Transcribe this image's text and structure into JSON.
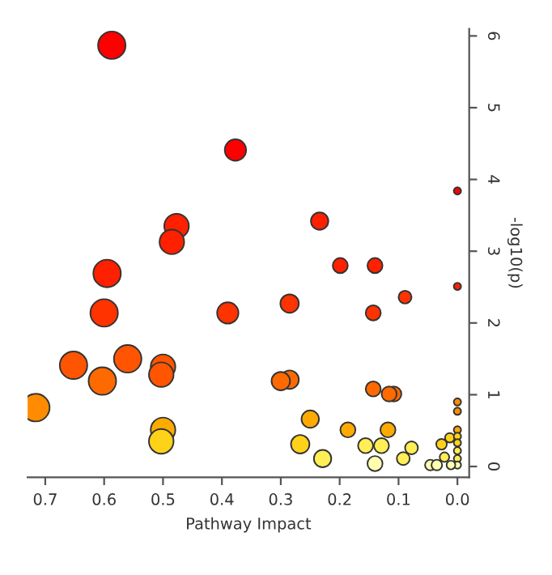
{
  "chart_data": {
    "type": "bubble",
    "xlabel": "Pathway Impact",
    "ylabel": "-log10(p)",
    "xlim": [
      0.73,
      -0.02
    ],
    "ylim": [
      -0.15,
      6.1
    ],
    "xticks": [
      {
        "value": 0.7,
        "label": "0.7"
      },
      {
        "value": 0.6,
        "label": "0.6"
      },
      {
        "value": 0.5,
        "label": "0.5"
      },
      {
        "value": 0.4,
        "label": "0.4"
      },
      {
        "value": 0.3,
        "label": "0.3"
      },
      {
        "value": 0.2,
        "label": "0.2"
      },
      {
        "value": 0.1,
        "label": "0.1"
      },
      {
        "value": 0,
        "label": "0.0"
      }
    ],
    "yticks": [
      0,
      1,
      2,
      3,
      4,
      5,
      6
    ],
    "grid": false,
    "legend": false,
    "x": [
      0.587,
      0.377,
      0.0,
      0.477,
      0.485,
      0.234,
      0.199,
      0.14,
      0.595,
      0.0,
      0.089,
      0.285,
      0.143,
      0.39,
      0.6,
      0.56,
      0.652,
      0.5,
      0.503,
      0.603,
      0.285,
      0.3,
      0.143,
      0.108,
      0.116,
      0.0,
      0.0,
      0.716,
      0.25,
      0.5,
      0.503,
      0.186,
      0.118,
      0.267,
      0.156,
      0.129,
      0.229,
      0.14,
      0.092,
      0.078,
      0.027,
      0.013,
      0.0,
      0.0,
      0.0,
      0.0,
      0.0,
      0.0,
      0.046,
      0.035,
      0.022,
      0.011
    ],
    "values": [
      5.87,
      4.41,
      3.84,
      3.35,
      3.13,
      3.42,
      2.8,
      2.8,
      2.69,
      2.51,
      2.36,
      2.27,
      2.14,
      2.14,
      2.14,
      1.5,
      1.41,
      1.39,
      1.28,
      1.19,
      1.21,
      1.19,
      1.08,
      1.01,
      1.01,
      0.9,
      0.77,
      0.82,
      0.66,
      0.51,
      0.35,
      0.51,
      0.51,
      0.31,
      0.29,
      0.29,
      0.11,
      0.04,
      0.11,
      0.26,
      0.31,
      0.4,
      0.51,
      0.42,
      0.33,
      0.22,
      0.11,
      0.02,
      0.02,
      0.02,
      0.13,
      0.02
    ],
    "sizes": [
      1,
      0.6,
      0.07,
      0.8,
      0.8,
      0.4,
      0.3,
      0.3,
      1,
      0.07,
      0.22,
      0.45,
      0.3,
      0.6,
      1,
      1,
      1,
      0.8,
      0.8,
      1,
      0.45,
      0.45,
      0.3,
      0.3,
      0.3,
      0.07,
      0.07,
      1,
      0.4,
      0.8,
      0.8,
      0.3,
      0.3,
      0.45,
      0.3,
      0.3,
      0.4,
      0.3,
      0.22,
      0.22,
      0.15,
      0.12,
      0.07,
      0.07,
      0.07,
      0.07,
      0.07,
      0.07,
      0.15,
      0.15,
      0.12,
      0.1
    ],
    "colors": [
      "#ff0000",
      "#ff0000",
      "#ff0000",
      "#ff2000",
      "#ff2000",
      "#ff2000",
      "#ff2000",
      "#ff2000",
      "#ff2000",
      "#ff2000",
      "#ff3300",
      "#ff3300",
      "#ff3300",
      "#ff3300",
      "#ff3300",
      "#ff5500",
      "#ff5500",
      "#ff5500",
      "#ff5500",
      "#ff6a00",
      "#ff6a00",
      "#ff6a00",
      "#ff6a00",
      "#ff6a00",
      "#ff6a00",
      "#ff8c00",
      "#ff8c00",
      "#ff8c00",
      "#ffaa00",
      "#ffaa00",
      "#ffd21a",
      "#ffaa00",
      "#ffaa00",
      "#ffd21a",
      "#ffee55",
      "#ffee55",
      "#ffee55",
      "#ffffb0",
      "#ffee55",
      "#ffee55",
      "#ffd21a",
      "#ffd21a",
      "#ffaa00",
      "#ffd21a",
      "#ffd21a",
      "#ffee55",
      "#ffee55",
      "#ffffb0",
      "#ffffb0",
      "#ffffb0",
      "#ffee55",
      "#ffffb0"
    ]
  }
}
